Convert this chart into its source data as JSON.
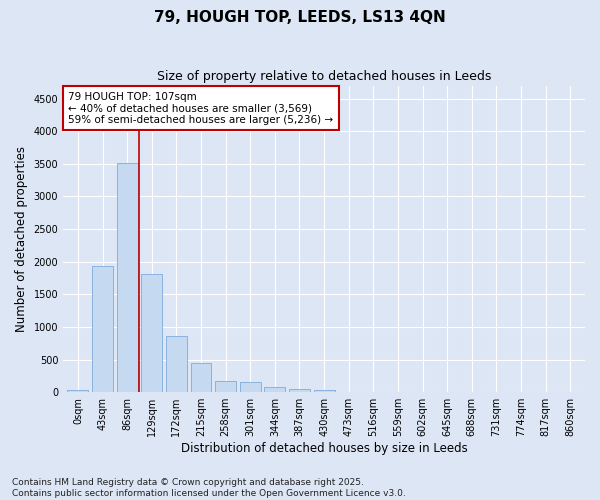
{
  "title": "79, HOUGH TOP, LEEDS, LS13 4QN",
  "subtitle": "Size of property relative to detached houses in Leeds",
  "xlabel": "Distribution of detached houses by size in Leeds",
  "ylabel": "Number of detached properties",
  "categories": [
    "0sqm",
    "43sqm",
    "86sqm",
    "129sqm",
    "172sqm",
    "215sqm",
    "258sqm",
    "301sqm",
    "344sqm",
    "387sqm",
    "430sqm",
    "473sqm",
    "516sqm",
    "559sqm",
    "602sqm",
    "645sqm",
    "688sqm",
    "731sqm",
    "774sqm",
    "817sqm",
    "860sqm"
  ],
  "bar_values": [
    30,
    1940,
    3520,
    1810,
    855,
    445,
    175,
    160,
    85,
    55,
    35,
    0,
    0,
    0,
    0,
    0,
    0,
    0,
    0,
    0,
    0
  ],
  "bar_color": "#c5d9f0",
  "bar_edge_color": "#7faadb",
  "vline_x": 2.5,
  "vline_color": "#c00000",
  "annotation_text": "79 HOUGH TOP: 107sqm\n← 40% of detached houses are smaller (3,569)\n59% of semi-detached houses are larger (5,236) →",
  "annotation_box_facecolor": "#ffffff",
  "annotation_border_color": "#c00000",
  "ylim": [
    0,
    4700
  ],
  "yticks": [
    0,
    500,
    1000,
    1500,
    2000,
    2500,
    3000,
    3500,
    4000,
    4500
  ],
  "footer_text": "Contains HM Land Registry data © Crown copyright and database right 2025.\nContains public sector information licensed under the Open Government Licence v3.0.",
  "bg_color": "#dce6f5",
  "plot_bg_color": "#dce6f5",
  "title_fontsize": 11,
  "subtitle_fontsize": 9,
  "tick_fontsize": 7,
  "label_fontsize": 8.5,
  "footer_fontsize": 6.5,
  "annotation_fontsize": 7.5
}
